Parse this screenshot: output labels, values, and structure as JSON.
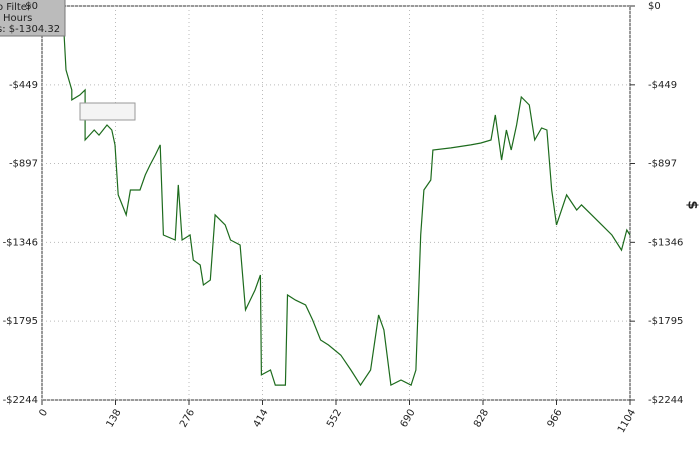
{
  "info_box": [
    "o Filter",
    "Hours",
    "s: $-1304.32"
  ],
  "chart_data": {
    "type": "line",
    "right_axis_label": "$",
    "x": [
      40,
      45,
      56,
      56,
      71,
      81,
      81,
      98,
      107,
      122,
      131,
      137,
      143,
      158,
      166,
      184,
      194,
      203,
      213,
      222,
      228,
      250,
      256,
      263,
      278,
      284,
      297,
      303,
      316,
      325,
      344,
      354,
      372,
      382,
      400,
      410,
      412,
      429,
      438,
      457,
      461,
      476,
      495,
      508,
      523,
      538,
      561,
      580,
      598,
      617,
      632,
      642,
      655,
      674,
      693,
      702,
      711,
      717,
      730,
      734,
      768,
      805,
      824,
      843,
      851,
      863,
      872,
      881,
      891,
      900,
      915,
      925,
      938,
      948,
      957,
      966,
      985,
      1004,
      1013,
      1032,
      1051,
      1070,
      1088,
      1098,
      1104
    ],
    "series": [
      {
        "color": "#1d6b1d",
        "values": [
          -80,
          -364,
          -478,
          -535,
          -507,
          -478,
          -763,
          -706,
          -735,
          -678,
          -706,
          -791,
          -1076,
          -1190,
          -1048,
          -1048,
          -962,
          -905,
          -848,
          -791,
          -1304,
          -1333,
          -1019,
          -1333,
          -1304,
          -1447,
          -1475,
          -1589,
          -1561,
          -1190,
          -1247,
          -1333,
          -1361,
          -1731,
          -1618,
          -1532,
          -2101,
          -2073,
          -2159,
          -2159,
          -1646,
          -1675,
          -1703,
          -1788,
          -1902,
          -1931,
          -1988,
          -2073,
          -2159,
          -2073,
          -1760,
          -1845,
          -2159,
          -2130,
          -2159,
          -2073,
          -1304,
          -1048,
          -991,
          -820,
          -808,
          -791,
          -780,
          -763,
          -621,
          -877,
          -706,
          -820,
          -678,
          -518,
          -564,
          -763,
          -695,
          -706,
          -1048,
          -1247,
          -1076,
          -1162,
          -1133,
          -1190,
          -1247,
          -1304,
          -1390,
          -1276,
          -1304
        ]
      }
    ],
    "xlim": [
      0,
      1104
    ],
    "xticks": [
      0,
      138,
      276,
      414,
      552,
      690,
      828,
      966,
      1104
    ],
    "ylim": [
      -2244,
      0
    ],
    "yticks": [
      {
        "value": 0,
        "label": "$0"
      },
      {
        "value": -449,
        "label": "-$449"
      },
      {
        "value": -897,
        "label": "-$897"
      },
      {
        "value": -1346,
        "label": "-$1346"
      },
      {
        "value": -1795,
        "label": "-$1795"
      },
      {
        "value": -2244,
        "label": "-$2244"
      }
    ],
    "grid": true
  }
}
